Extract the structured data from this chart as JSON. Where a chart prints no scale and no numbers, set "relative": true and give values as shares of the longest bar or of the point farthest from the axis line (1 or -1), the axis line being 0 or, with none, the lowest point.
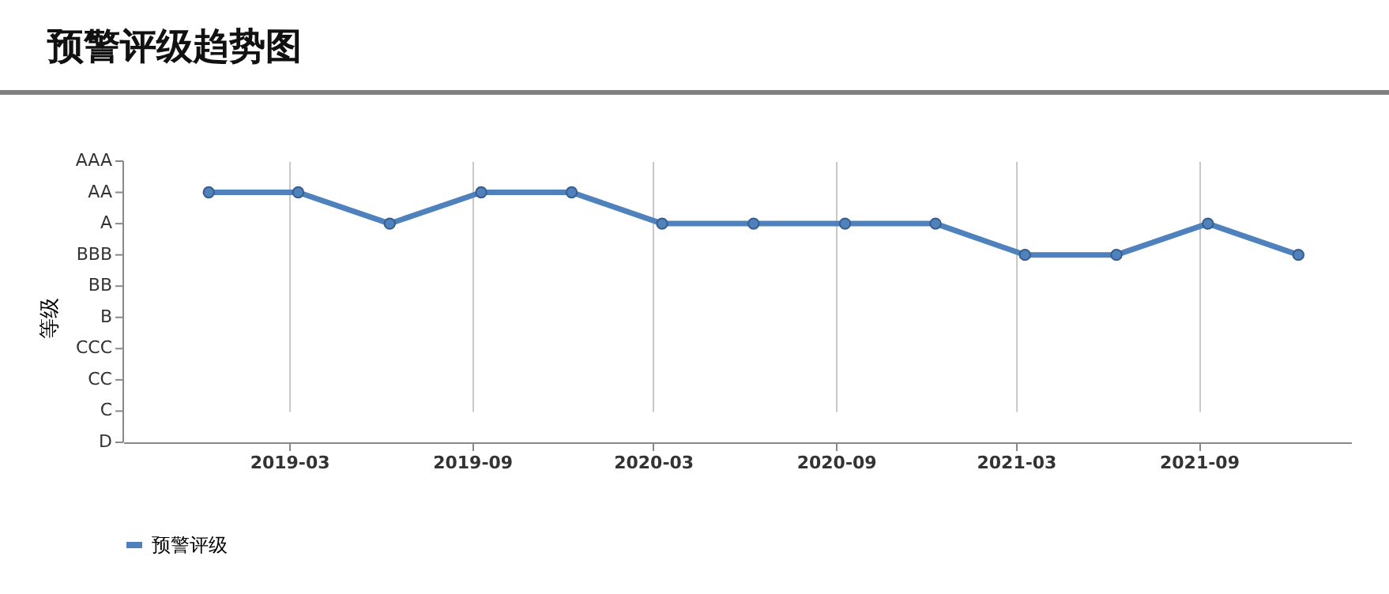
{
  "chart_data": {
    "type": "line",
    "title": "预警评级趋势图",
    "ylabel": "等级",
    "x": [
      "2018-12-10",
      "2019-03-10",
      "2019-06-10",
      "2019-09-10",
      "2019-12-10",
      "2020-03-10",
      "2020-06-10",
      "2020-09-10",
      "2020-12-10",
      "2021-03-10",
      "2021-06-10",
      "2021-09-10",
      "2021-12-10"
    ],
    "relative": true,
    "series": [
      {
        "name": "预警评级",
        "color": "#4f81bd",
        "values": [
          1,
          1,
          0.875,
          1,
          1,
          0.875,
          0.875,
          0.875,
          0.875,
          0.75,
          0.75,
          0.875,
          0.75
        ]
      }
    ],
    "annotations": [
      "AAA",
      "AA",
      "A",
      "BBB",
      "BB",
      "B",
      "CCC",
      "CC",
      "C",
      "D"
    ],
    "xlim": [
      "2018-09-15",
      "2022-02-01"
    ],
    "xticks": [
      "2019-03",
      "2019-09",
      "2020-03",
      "2020-09",
      "2021-03",
      "2021-09"
    ],
    "grid": "x",
    "legend": "bottom",
    "marker": "circle",
    "line_style": "solid"
  }
}
